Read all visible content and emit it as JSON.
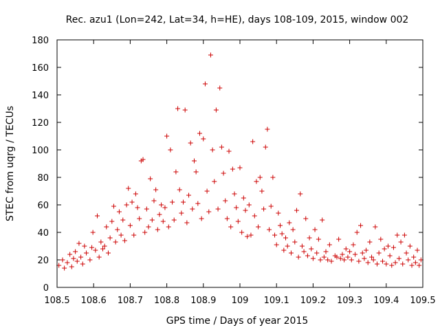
{
  "chart_data": {
    "type": "scatter",
    "title": "Rec. azu1 (Lon=242, Lat=34, h=HE), days 108-109, 2015, window 002",
    "xlabel": "GPS time / Days of year 2015",
    "ylabel": "STEC from uqrg / TECUs",
    "xlim": [
      108.5,
      109.5
    ],
    "ylim": [
      0,
      180
    ],
    "xticks": [
      108.5,
      108.6,
      108.7,
      108.8,
      108.9,
      109.0,
      109.1,
      109.2,
      109.3,
      109.4,
      109.5
    ],
    "xtick_labels": [
      "108.5",
      "108.6",
      "108.7",
      "108.8",
      "108.9",
      "109",
      "109.1",
      "109.2",
      "109.3",
      "109.4",
      "109.5"
    ],
    "yticks": [
      0,
      20,
      40,
      60,
      80,
      100,
      120,
      140,
      160,
      180
    ],
    "ytick_labels": [
      "0",
      "20",
      "40",
      "60",
      "80",
      "100",
      "120",
      "140",
      "160",
      "180"
    ],
    "grid": false,
    "marker": "plus",
    "color": "#cc0000",
    "series": [
      {
        "name": "STEC",
        "points": [
          [
            108.505,
            16
          ],
          [
            108.515,
            20
          ],
          [
            108.52,
            14
          ],
          [
            108.528,
            18
          ],
          [
            108.535,
            24
          ],
          [
            108.54,
            15
          ],
          [
            108.545,
            21
          ],
          [
            108.55,
            26
          ],
          [
            108.555,
            19
          ],
          [
            108.56,
            32
          ],
          [
            108.565,
            22
          ],
          [
            108.57,
            17
          ],
          [
            108.575,
            30
          ],
          [
            108.58,
            25
          ],
          [
            108.59,
            20
          ],
          [
            108.595,
            29
          ],
          [
            108.598,
            40
          ],
          [
            108.605,
            27
          ],
          [
            108.61,
            52
          ],
          [
            108.615,
            22
          ],
          [
            108.62,
            33
          ],
          [
            108.625,
            28
          ],
          [
            108.63,
            30
          ],
          [
            108.635,
            44
          ],
          [
            108.64,
            25
          ],
          [
            108.645,
            36
          ],
          [
            108.65,
            48
          ],
          [
            108.655,
            59
          ],
          [
            108.66,
            33
          ],
          [
            108.665,
            42
          ],
          [
            108.67,
            55
          ],
          [
            108.675,
            38
          ],
          [
            108.68,
            49
          ],
          [
            108.685,
            34
          ],
          [
            108.69,
            60
          ],
          [
            108.695,
            72
          ],
          [
            108.7,
            45
          ],
          [
            108.705,
            62
          ],
          [
            108.71,
            38
          ],
          [
            108.715,
            68
          ],
          [
            108.72,
            58
          ],
          [
            108.725,
            50
          ],
          [
            108.73,
            92
          ],
          [
            108.735,
            93
          ],
          [
            108.74,
            40
          ],
          [
            108.745,
            57
          ],
          [
            108.75,
            44
          ],
          [
            108.755,
            79
          ],
          [
            108.76,
            49
          ],
          [
            108.765,
            63
          ],
          [
            108.77,
            71
          ],
          [
            108.775,
            42
          ],
          [
            108.78,
            53
          ],
          [
            108.785,
            60
          ],
          [
            108.79,
            48
          ],
          [
            108.795,
            58
          ],
          [
            108.8,
            110
          ],
          [
            108.805,
            44
          ],
          [
            108.81,
            100
          ],
          [
            108.815,
            62
          ],
          [
            108.82,
            49
          ],
          [
            108.825,
            84
          ],
          [
            108.83,
            130
          ],
          [
            108.835,
            71
          ],
          [
            108.84,
            54
          ],
          [
            108.845,
            62
          ],
          [
            108.85,
            129
          ],
          [
            108.855,
            47
          ],
          [
            108.86,
            67
          ],
          [
            108.865,
            105
          ],
          [
            108.87,
            57
          ],
          [
            108.875,
            92
          ],
          [
            108.88,
            84
          ],
          [
            108.885,
            61
          ],
          [
            108.89,
            112
          ],
          [
            108.895,
            50
          ],
          [
            108.9,
            108
          ],
          [
            108.905,
            148
          ],
          [
            108.91,
            70
          ],
          [
            108.915,
            55
          ],
          [
            108.92,
            169
          ],
          [
            108.925,
            100
          ],
          [
            108.93,
            77
          ],
          [
            108.935,
            129
          ],
          [
            108.94,
            57
          ],
          [
            108.945,
            145
          ],
          [
            108.95,
            102
          ],
          [
            108.955,
            83
          ],
          [
            108.96,
            63
          ],
          [
            108.965,
            50
          ],
          [
            108.97,
            99
          ],
          [
            108.975,
            44
          ],
          [
            108.98,
            86
          ],
          [
            108.985,
            68
          ],
          [
            108.99,
            58
          ],
          [
            108.995,
            48
          ],
          [
            109.0,
            87
          ],
          [
            109.005,
            40
          ],
          [
            109.01,
            65
          ],
          [
            109.015,
            56
          ],
          [
            109.02,
            37
          ],
          [
            109.025,
            60
          ],
          [
            109.03,
            38
          ],
          [
            109.035,
            106
          ],
          [
            109.04,
            52
          ],
          [
            109.045,
            77
          ],
          [
            109.05,
            44
          ],
          [
            109.055,
            80
          ],
          [
            109.06,
            70
          ],
          [
            109.065,
            57
          ],
          [
            109.07,
            102
          ],
          [
            109.075,
            115
          ],
          [
            109.08,
            42
          ],
          [
            109.085,
            59
          ],
          [
            109.09,
            80
          ],
          [
            109.095,
            38
          ],
          [
            109.1,
            31
          ],
          [
            109.105,
            54
          ],
          [
            109.11,
            45
          ],
          [
            109.115,
            39
          ],
          [
            109.12,
            27
          ],
          [
            109.125,
            36
          ],
          [
            109.13,
            30
          ],
          [
            109.135,
            47
          ],
          [
            109.14,
            25
          ],
          [
            109.145,
            42
          ],
          [
            109.15,
            33
          ],
          [
            109.155,
            56
          ],
          [
            109.16,
            22
          ],
          [
            109.165,
            68
          ],
          [
            109.17,
            30
          ],
          [
            109.175,
            26
          ],
          [
            109.18,
            50
          ],
          [
            109.185,
            23
          ],
          [
            109.19,
            36
          ],
          [
            109.195,
            28
          ],
          [
            109.2,
            21
          ],
          [
            109.205,
            42
          ],
          [
            109.21,
            25
          ],
          [
            109.215,
            35
          ],
          [
            109.22,
            20
          ],
          [
            109.225,
            49
          ],
          [
            109.23,
            22
          ],
          [
            109.235,
            26
          ],
          [
            109.24,
            20
          ],
          [
            109.245,
            31
          ],
          [
            109.25,
            19
          ],
          [
            109.26,
            23
          ],
          [
            109.265,
            22
          ],
          [
            109.27,
            35
          ],
          [
            109.275,
            21
          ],
          [
            109.28,
            24
          ],
          [
            109.285,
            20
          ],
          [
            109.29,
            28
          ],
          [
            109.295,
            22
          ],
          [
            109.3,
            26
          ],
          [
            109.305,
            20
          ],
          [
            109.31,
            31
          ],
          [
            109.315,
            24
          ],
          [
            109.32,
            40
          ],
          [
            109.325,
            19
          ],
          [
            109.33,
            45
          ],
          [
            109.335,
            25
          ],
          [
            109.34,
            21
          ],
          [
            109.345,
            27
          ],
          [
            109.35,
            18
          ],
          [
            109.355,
            33
          ],
          [
            109.36,
            22
          ],
          [
            109.365,
            20
          ],
          [
            109.37,
            44
          ],
          [
            109.375,
            17
          ],
          [
            109.38,
            25
          ],
          [
            109.385,
            35
          ],
          [
            109.39,
            19
          ],
          [
            109.395,
            28
          ],
          [
            109.4,
            17
          ],
          [
            109.405,
            30
          ],
          [
            109.41,
            23
          ],
          [
            109.415,
            16
          ],
          [
            109.42,
            29
          ],
          [
            109.425,
            18
          ],
          [
            109.43,
            38
          ],
          [
            109.435,
            21
          ],
          [
            109.44,
            33
          ],
          [
            109.445,
            17
          ],
          [
            109.45,
            38
          ],
          [
            109.455,
            25
          ],
          [
            109.46,
            20
          ],
          [
            109.465,
            30
          ],
          [
            109.47,
            16
          ],
          [
            109.475,
            22
          ],
          [
            109.48,
            18
          ],
          [
            109.485,
            27
          ],
          [
            109.49,
            16
          ],
          [
            109.495,
            20
          ]
        ]
      }
    ]
  }
}
